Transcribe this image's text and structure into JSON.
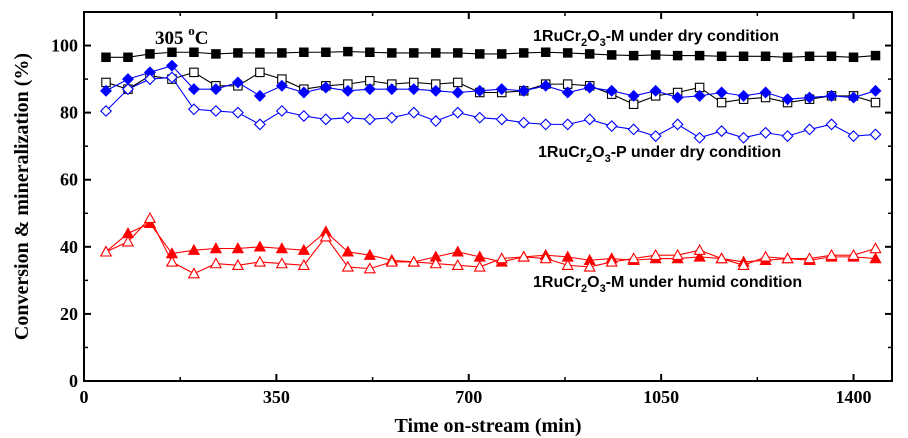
{
  "chart_data": {
    "type": "line",
    "xlabel": "Time on-stream (min)",
    "ylabel": "Conversion & mineralization (%)",
    "xlim": [
      0,
      1470
    ],
    "ylim": [
      0,
      110
    ],
    "xticks": [
      0,
      350,
      700,
      1050,
      1400
    ],
    "yticks": [
      0,
      20,
      40,
      60,
      80,
      100
    ],
    "grid": false,
    "temperature_label": {
      "prefix": "305 ",
      "sup": "o",
      "suffix": "C"
    },
    "annotations": [
      {
        "parts": [
          "1RuCr",
          "2",
          "O",
          "3",
          "-M  under dry condition"
        ]
      },
      {
        "parts": [
          "1RuCr",
          "2",
          "O",
          "3",
          "-P  under dry condition"
        ]
      },
      {
        "parts": [
          "1RuCr",
          "2",
          "O",
          "3",
          "-M  under humid condition"
        ]
      }
    ],
    "series": [
      {
        "marker": "square-filled",
        "color": "#000000",
        "x": [
          40,
          80,
          120,
          160,
          200,
          240,
          280,
          320,
          360,
          400,
          440,
          480,
          520,
          560,
          600,
          640,
          680,
          720,
          760,
          800,
          840,
          880,
          920,
          960,
          1000,
          1040,
          1080,
          1120,
          1160,
          1200,
          1240,
          1280,
          1320,
          1360,
          1400,
          1440
        ],
        "y": [
          96.5,
          96.5,
          97.5,
          98,
          98,
          97.5,
          97.8,
          97.8,
          97.8,
          98,
          98,
          98.2,
          98,
          97.8,
          97.8,
          97.8,
          97.8,
          97.5,
          97.5,
          97.8,
          98,
          97.8,
          97.5,
          97.2,
          97,
          97.2,
          97,
          97,
          96.8,
          96.8,
          96.8,
          96.5,
          96.8,
          96.8,
          96.5,
          97
        ]
      },
      {
        "marker": "square-open",
        "color": "#000000",
        "x": [
          40,
          80,
          120,
          160,
          200,
          240,
          280,
          320,
          360,
          400,
          440,
          480,
          520,
          560,
          600,
          640,
          680,
          720,
          760,
          800,
          840,
          880,
          920,
          960,
          1000,
          1040,
          1080,
          1120,
          1160,
          1200,
          1240,
          1280,
          1320,
          1360,
          1400,
          1440
        ],
        "y": [
          89,
          87,
          91,
          90,
          92,
          88,
          88,
          92,
          90,
          87,
          88,
          88.5,
          89.5,
          88.5,
          89,
          88.5,
          89,
          86,
          86,
          86.5,
          88.5,
          88.5,
          88,
          85.5,
          82.5,
          85,
          86,
          87.5,
          83,
          84,
          84.5,
          83,
          84,
          85,
          85,
          83
        ]
      },
      {
        "marker": "diamond-filled",
        "color": "#0000ff",
        "x": [
          40,
          80,
          120,
          160,
          200,
          240,
          280,
          320,
          360,
          400,
          440,
          480,
          520,
          560,
          600,
          640,
          680,
          720,
          760,
          800,
          840,
          880,
          920,
          960,
          1000,
          1040,
          1080,
          1120,
          1160,
          1200,
          1240,
          1280,
          1320,
          1360,
          1400,
          1440
        ],
        "y": [
          86.5,
          90,
          92,
          94,
          87,
          87,
          89,
          85,
          88,
          86,
          87.5,
          86.5,
          87,
          87,
          87,
          86.5,
          86,
          86.5,
          87,
          86.5,
          88,
          86,
          87.5,
          86.5,
          85,
          86.5,
          84.5,
          85,
          86,
          85,
          86,
          84,
          84.5,
          85,
          84.5,
          86.5
        ]
      },
      {
        "marker": "diamond-open",
        "color": "#0000ff",
        "x": [
          40,
          80,
          120,
          160,
          200,
          240,
          280,
          320,
          360,
          400,
          440,
          480,
          520,
          560,
          600,
          640,
          680,
          720,
          760,
          800,
          840,
          880,
          920,
          960,
          1000,
          1040,
          1080,
          1120,
          1160,
          1200,
          1240,
          1280,
          1320,
          1360,
          1400,
          1440
        ],
        "y": [
          80.5,
          87,
          90,
          90.5,
          81,
          80.5,
          80,
          76.5,
          80.5,
          79,
          78,
          78.5,
          78,
          78.5,
          80,
          77.5,
          80,
          78.5,
          78,
          77,
          76.5,
          76.5,
          78,
          76,
          75,
          73,
          76.5,
          72.5,
          74.5,
          72.5,
          74,
          73,
          75,
          76.5,
          73,
          73.5
        ]
      },
      {
        "marker": "triangle-filled",
        "color": "#ff0000",
        "x": [
          40,
          80,
          120,
          160,
          200,
          240,
          280,
          320,
          360,
          400,
          440,
          480,
          520,
          560,
          600,
          640,
          680,
          720,
          760,
          800,
          840,
          880,
          920,
          960,
          1000,
          1040,
          1080,
          1120,
          1160,
          1200,
          1240,
          1280,
          1320,
          1360,
          1400,
          1440
        ],
        "y": [
          38.5,
          44,
          47,
          38,
          39,
          39.5,
          39.5,
          40,
          39.5,
          39,
          44.5,
          38.5,
          37.5,
          36,
          35.5,
          37,
          38.5,
          37,
          35.5,
          37,
          37.5,
          37,
          36,
          36.5,
          36,
          36.5,
          36.5,
          37,
          36.5,
          35.5,
          36,
          36.5,
          36,
          37,
          37,
          36.5
        ]
      },
      {
        "marker": "triangle-open",
        "color": "#ff0000",
        "x": [
          40,
          80,
          120,
          160,
          200,
          240,
          280,
          320,
          360,
          400,
          440,
          480,
          520,
          560,
          600,
          640,
          680,
          720,
          760,
          800,
          840,
          880,
          920,
          960,
          1000,
          1040,
          1080,
          1120,
          1160,
          1200,
          1240,
          1280,
          1320,
          1360,
          1400,
          1440
        ],
        "y": [
          38.5,
          41.5,
          48.5,
          35.5,
          32,
          35,
          34.5,
          35.5,
          35,
          34.5,
          43,
          34,
          33.5,
          35.5,
          35.5,
          35,
          34.5,
          34,
          36.5,
          37,
          36.5,
          34.5,
          34,
          35.5,
          36.5,
          37.5,
          37.5,
          39,
          36.5,
          34.5,
          37,
          36.5,
          36.5,
          37.5,
          37.5,
          39.5
        ]
      }
    ]
  }
}
